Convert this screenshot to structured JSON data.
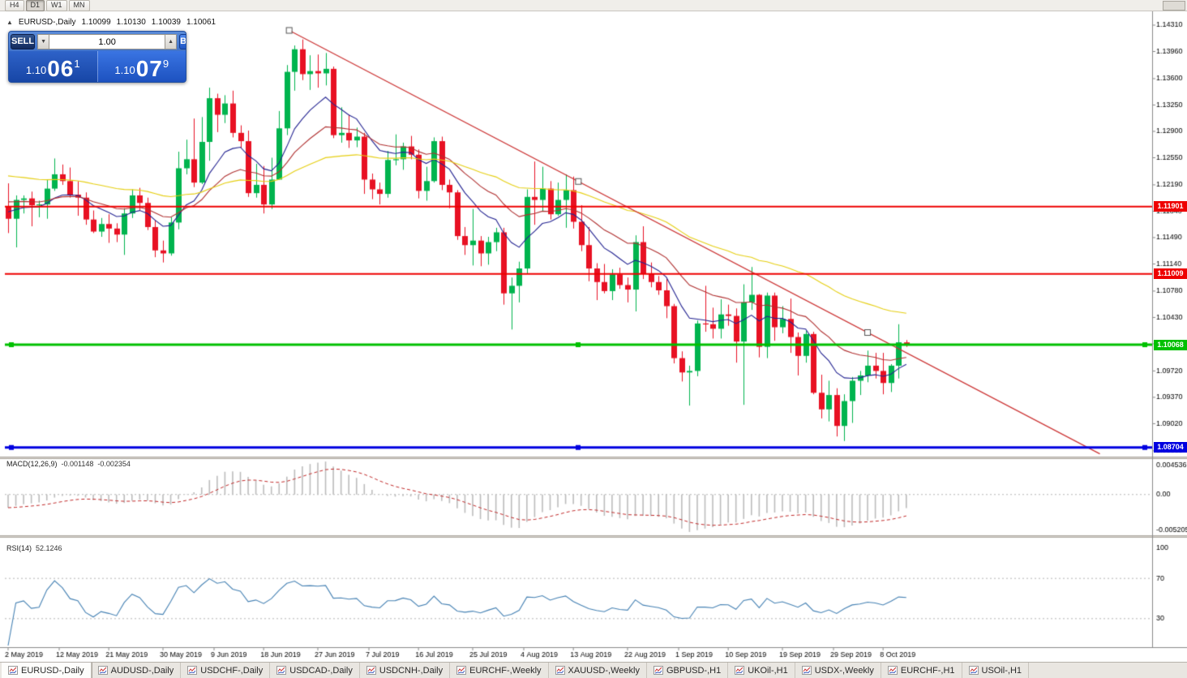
{
  "window": {
    "timeframes": [
      {
        "label": "H4",
        "active": false
      },
      {
        "label": "D1",
        "active": true
      },
      {
        "label": "W1",
        "active": false
      },
      {
        "label": "MN",
        "active": false
      }
    ]
  },
  "chart_header": {
    "symbol": "EURUSD-,Daily",
    "o": "1.10099",
    "h": "1.10130",
    "l": "1.10039",
    "c": "1.10061"
  },
  "one_click": {
    "toggle_icon": "▲",
    "sell_label": "SELL",
    "buy_label": "BUY",
    "volume": "1.00",
    "volume_down_icon": "▼",
    "volume_up_icon": "▲",
    "sell_price_prefix": "1.10",
    "sell_price_big": "06",
    "sell_price_sup": "1",
    "buy_price_prefix": "1.10",
    "buy_price_big": "07",
    "buy_price_sup": "9"
  },
  "macd_panel": {
    "label": "MACD(12,26,9)",
    "main_value": "-0.001148",
    "signal_value": "-0.002354",
    "axis_max_label": "0.004536",
    "axis_zero_label": "0.00",
    "axis_min_label": "-0.005205",
    "max": 0.004536,
    "min": -0.005205
  },
  "rsi_panel": {
    "label": "RSI(14)",
    "value": "52.1246",
    "levels": [
      100,
      70,
      30
    ],
    "level_labels": [
      "100",
      "70",
      "30"
    ]
  },
  "bottom_tabs": [
    {
      "label": "EURUSD-,Daily",
      "active": true
    },
    {
      "label": "AUDUSD-,Daily",
      "active": false
    },
    {
      "label": "USDCHF-,Daily",
      "active": false
    },
    {
      "label": "USDCAD-,Daily",
      "active": false
    },
    {
      "label": "USDCNH-,Daily",
      "active": false
    },
    {
      "label": "EURCHF-,Weekly",
      "active": false
    },
    {
      "label": "XAUUSD-,Weekly",
      "active": false
    },
    {
      "label": "GBPUSD-,H1",
      "active": false
    },
    {
      "label": "UKOil-,H1",
      "active": false
    },
    {
      "label": "USDX-,Weekly",
      "active": false
    },
    {
      "label": "EURCHF-,H1",
      "active": false
    },
    {
      "label": "USOil-,H1",
      "active": false
    }
  ],
  "colors": {
    "candle_up": "#00b44e",
    "candle_down": "#e81123",
    "trendline": "#cc3333",
    "macd_bar": "#bcbcbc",
    "macd_signal": "#c22a2a",
    "rsi_line": "#4682b4",
    "axis_border": "#8a8a8a"
  },
  "chart_data": {
    "type": "candlestick",
    "symbol": "EURUSD",
    "timeframe": "Daily",
    "price_range": {
      "top": 1.14493,
      "bottom": 1.08583
    },
    "price_ticks": [
      "1.14310",
      "1.13960",
      "1.13600",
      "1.13250",
      "1.12900",
      "1.12550",
      "1.12190",
      "1.11840",
      "1.11490",
      "1.11140",
      "1.10780",
      "1.10430",
      "1.10080",
      "1.09720",
      "1.09370",
      "1.09020",
      "1.08660"
    ],
    "candles": [
      [
        1.119,
        1.1221,
        1.1155,
        1.1174
      ],
      [
        1.1174,
        1.1205,
        1.1136,
        1.1199
      ],
      [
        1.1199,
        1.1205,
        1.1181,
        1.1201
      ],
      [
        1.1201,
        1.121,
        1.1164,
        1.1192
      ],
      [
        1.1192,
        1.1198,
        1.1176,
        1.1193
      ],
      [
        1.1193,
        1.1226,
        1.1174,
        1.1214
      ],
      [
        1.1214,
        1.1254,
        1.1211,
        1.1233
      ],
      [
        1.1233,
        1.1246,
        1.1219,
        1.1224
      ],
      [
        1.1224,
        1.1242,
        1.1202,
        1.1206
      ],
      [
        1.1206,
        1.1224,
        1.1178,
        1.1202
      ],
      [
        1.1202,
        1.1209,
        1.1166,
        1.1173
      ],
      [
        1.1173,
        1.1185,
        1.1155,
        1.1157
      ],
      [
        1.1157,
        1.1175,
        1.115,
        1.1167
      ],
      [
        1.1167,
        1.118,
        1.1142,
        1.1161
      ],
      [
        1.1161,
        1.1168,
        1.1143,
        1.1153
      ],
      [
        1.1153,
        1.1188,
        1.1126,
        1.1181
      ],
      [
        1.1181,
        1.1213,
        1.1175,
        1.1205
      ],
      [
        1.1205,
        1.1215,
        1.1185,
        1.1195
      ],
      [
        1.1195,
        1.1202,
        1.1159,
        1.1163
      ],
      [
        1.1163,
        1.1172,
        1.1123,
        1.1132
      ],
      [
        1.1132,
        1.1145,
        1.1116,
        1.1128
      ],
      [
        1.1128,
        1.1176,
        1.1125,
        1.1169
      ],
      [
        1.1169,
        1.1263,
        1.116,
        1.1241
      ],
      [
        1.1241,
        1.1279,
        1.1233,
        1.1253
      ],
      [
        1.1253,
        1.1307,
        1.1216,
        1.1222
      ],
      [
        1.1222,
        1.1309,
        1.122,
        1.1276
      ],
      [
        1.1276,
        1.1348,
        1.1251,
        1.1334
      ],
      [
        1.1334,
        1.134,
        1.1289,
        1.1312
      ],
      [
        1.1312,
        1.1338,
        1.1301,
        1.1327
      ],
      [
        1.1327,
        1.1344,
        1.1282,
        1.1288
      ],
      [
        1.1288,
        1.1298,
        1.1268,
        1.1277
      ],
      [
        1.1277,
        1.1291,
        1.1203,
        1.1208
      ],
      [
        1.1208,
        1.1247,
        1.1202,
        1.1219
      ],
      [
        1.1219,
        1.1244,
        1.1181,
        1.1193
      ],
      [
        1.1193,
        1.1255,
        1.1187,
        1.1226
      ],
      [
        1.1226,
        1.1317,
        1.1226,
        1.1294
      ],
      [
        1.1294,
        1.1378,
        1.1285,
        1.1369
      ],
      [
        1.1369,
        1.1404,
        1.1344,
        1.1399
      ],
      [
        1.1399,
        1.1412,
        1.1358,
        1.1366
      ],
      [
        1.1366,
        1.1391,
        1.1345,
        1.137
      ],
      [
        1.137,
        1.1392,
        1.1348,
        1.1367
      ],
      [
        1.1367,
        1.1394,
        1.1351,
        1.1373
      ],
      [
        1.1373,
        1.1376,
        1.1281,
        1.1285
      ],
      [
        1.1285,
        1.1322,
        1.1275,
        1.1288
      ],
      [
        1.1288,
        1.1312,
        1.1268,
        1.1278
      ],
      [
        1.1278,
        1.1295,
        1.1269,
        1.1283
      ],
      [
        1.1283,
        1.1288,
        1.1207,
        1.1226
      ],
      [
        1.1226,
        1.1234,
        1.12,
        1.1213
      ],
      [
        1.1213,
        1.1222,
        1.1193,
        1.1207
      ],
      [
        1.1207,
        1.1264,
        1.1202,
        1.1252
      ],
      [
        1.1252,
        1.1286,
        1.1245,
        1.1253
      ],
      [
        1.1253,
        1.1275,
        1.1239,
        1.127
      ],
      [
        1.127,
        1.1284,
        1.1253,
        1.1259
      ],
      [
        1.1259,
        1.1266,
        1.1201,
        1.1211
      ],
      [
        1.1211,
        1.1243,
        1.1198,
        1.1224
      ],
      [
        1.1224,
        1.1282,
        1.1222,
        1.1277
      ],
      [
        1.1277,
        1.1283,
        1.1212,
        1.1219
      ],
      [
        1.1219,
        1.1226,
        1.1188,
        1.1209
      ],
      [
        1.1209,
        1.1212,
        1.1146,
        1.1151
      ],
      [
        1.1151,
        1.1163,
        1.1126,
        1.1139
      ],
      [
        1.1139,
        1.1187,
        1.1112,
        1.1145
      ],
      [
        1.1145,
        1.1151,
        1.1111,
        1.1128
      ],
      [
        1.1128,
        1.115,
        1.1113,
        1.1143
      ],
      [
        1.1143,
        1.1162,
        1.1131,
        1.1156
      ],
      [
        1.1156,
        1.1162,
        1.106,
        1.1075
      ],
      [
        1.1075,
        1.1096,
        1.1027,
        1.1085
      ],
      [
        1.1085,
        1.1117,
        1.1063,
        1.1108
      ],
      [
        1.1108,
        1.1213,
        1.1101,
        1.1203
      ],
      [
        1.1203,
        1.125,
        1.1166,
        1.1199
      ],
      [
        1.1199,
        1.1243,
        1.1184,
        1.1214
      ],
      [
        1.1214,
        1.1224,
        1.1173,
        1.118
      ],
      [
        1.118,
        1.1222,
        1.1178,
        1.1199
      ],
      [
        1.1199,
        1.1233,
        1.1162,
        1.1212
      ],
      [
        1.1212,
        1.123,
        1.1161,
        1.117
      ],
      [
        1.117,
        1.1192,
        1.1131,
        1.1139
      ],
      [
        1.1139,
        1.1163,
        1.1091,
        1.1108
      ],
      [
        1.1108,
        1.1115,
        1.1066,
        1.109
      ],
      [
        1.109,
        1.1114,
        1.1075,
        1.1078
      ],
      [
        1.1078,
        1.1107,
        1.1066,
        1.11
      ],
      [
        1.11,
        1.1109,
        1.1081,
        1.1086
      ],
      [
        1.1086,
        1.1096,
        1.1063,
        1.108
      ],
      [
        1.108,
        1.1152,
        1.1051,
        1.1143
      ],
      [
        1.1143,
        1.1164,
        1.1094,
        1.1101
      ],
      [
        1.1101,
        1.1116,
        1.1083,
        1.109
      ],
      [
        1.109,
        1.1098,
        1.1073,
        1.1079
      ],
      [
        1.1079,
        1.1094,
        1.1042,
        1.1058
      ],
      [
        1.1058,
        1.1061,
        1.0982,
        1.0989
      ],
      [
        1.0989,
        1.0998,
        1.0958,
        1.097
      ],
      [
        1.097,
        1.0979,
        1.0926,
        1.0972
      ],
      [
        1.0972,
        1.1039,
        1.0965,
        1.1035
      ],
      [
        1.1035,
        1.1085,
        1.1024,
        1.1034
      ],
      [
        1.1034,
        1.1056,
        1.1015,
        1.1028
      ],
      [
        1.1028,
        1.1067,
        1.1015,
        1.1047
      ],
      [
        1.1047,
        1.106,
        1.1032,
        1.1045
      ],
      [
        1.1045,
        1.1055,
        1.0983,
        1.1011
      ],
      [
        1.1011,
        1.1087,
        1.0927,
        1.1063
      ],
      [
        1.1063,
        1.111,
        1.1053,
        1.1073
      ],
      [
        1.1073,
        1.1074,
        1.099,
        1.1004
      ],
      [
        1.1004,
        1.1076,
        1.0989,
        1.1072
      ],
      [
        1.1072,
        1.1076,
        1.1012,
        1.103
      ],
      [
        1.103,
        1.1058,
        1.1022,
        1.1041
      ],
      [
        1.1041,
        1.1068,
        1.0996,
        1.1017
      ],
      [
        1.1017,
        1.1023,
        1.0966,
        1.0992
      ],
      [
        1.0992,
        1.1025,
        1.0983,
        1.1021
      ],
      [
        1.1021,
        1.1024,
        1.0941,
        1.0943
      ],
      [
        1.0943,
        1.0967,
        1.0909,
        1.0921
      ],
      [
        1.0921,
        1.0959,
        1.0905,
        1.094
      ],
      [
        1.094,
        1.0949,
        1.0885,
        1.0899
      ],
      [
        1.0899,
        1.0941,
        1.0879,
        1.0932
      ],
      [
        1.0932,
        1.0964,
        1.0903,
        1.0959
      ],
      [
        1.0959,
        1.0972,
        1.094,
        1.0966
      ],
      [
        1.0966,
        1.0999,
        1.0957,
        1.0979
      ],
      [
        1.0979,
        1.0996,
        1.0962,
        1.0972
      ],
      [
        1.0972,
        1.0996,
        1.0941,
        1.0956
      ],
      [
        1.0956,
        1.0981,
        1.0944,
        1.0979
      ],
      [
        1.0979,
        1.1034,
        1.0962,
        1.101
      ],
      [
        1.10099,
        1.1013,
        1.10039,
        1.10061
      ]
    ],
    "date_labels": [
      {
        "t": "2 May 2019",
        "i": 0
      },
      {
        "t": "12 May 2019",
        "i": 6.6
      },
      {
        "t": "21 May 2019",
        "i": 13
      },
      {
        "t": "30 May 2019",
        "i": 20
      },
      {
        "t": "9 Jun 2019",
        "i": 26.6
      },
      {
        "t": "18 Jun 2019",
        "i": 33
      },
      {
        "t": "27 Jun 2019",
        "i": 40
      },
      {
        "t": "7 Jul 2019",
        "i": 46.6
      },
      {
        "t": "16 Jul 2019",
        "i": 53
      },
      {
        "t": "25 Jul 2019",
        "i": 60
      },
      {
        "t": "4 Aug 2019",
        "i": 66.6
      },
      {
        "t": "13 Aug 2019",
        "i": 73
      },
      {
        "t": "22 Aug 2019",
        "i": 80
      },
      {
        "t": "1 Sep 2019",
        "i": 86.6
      },
      {
        "t": "10 Sep 2019",
        "i": 93
      },
      {
        "t": "19 Sep 2019",
        "i": 100
      },
      {
        "t": "29 Sep 2019",
        "i": 106.6
      },
      {
        "t": "8 Oct 2019",
        "i": 113
      }
    ],
    "levels": [
      {
        "price": 1.11901,
        "label": "1.11901",
        "color": "#ee0000",
        "width": 2,
        "handles": false
      },
      {
        "price": 1.11009,
        "label": "1.11009",
        "color": "#ee0000",
        "width": 2,
        "handles": false
      },
      {
        "price": 1.10068,
        "label": "1.10068",
        "color": "#00c000",
        "width": 3,
        "handles": true
      },
      {
        "price": 1.08704,
        "label": "1.08704",
        "color": "#0000e0",
        "width": 3,
        "handles": true
      }
    ],
    "trendline": {
      "i1": 36.3,
      "p1": 1.1424,
      "i2": 111,
      "p2": 1.1023,
      "ray_i": 141,
      "color": "#cc3333"
    },
    "moving_averages": [
      {
        "period": 10,
        "color": "#242492"
      },
      {
        "period": 21,
        "color": "#b03030"
      },
      {
        "period": 55,
        "color": "#e6cf12"
      }
    ],
    "indicators": {
      "macd": {
        "fast": 12,
        "slow": 26,
        "signal": 9
      },
      "rsi": {
        "period": 14
      }
    }
  }
}
